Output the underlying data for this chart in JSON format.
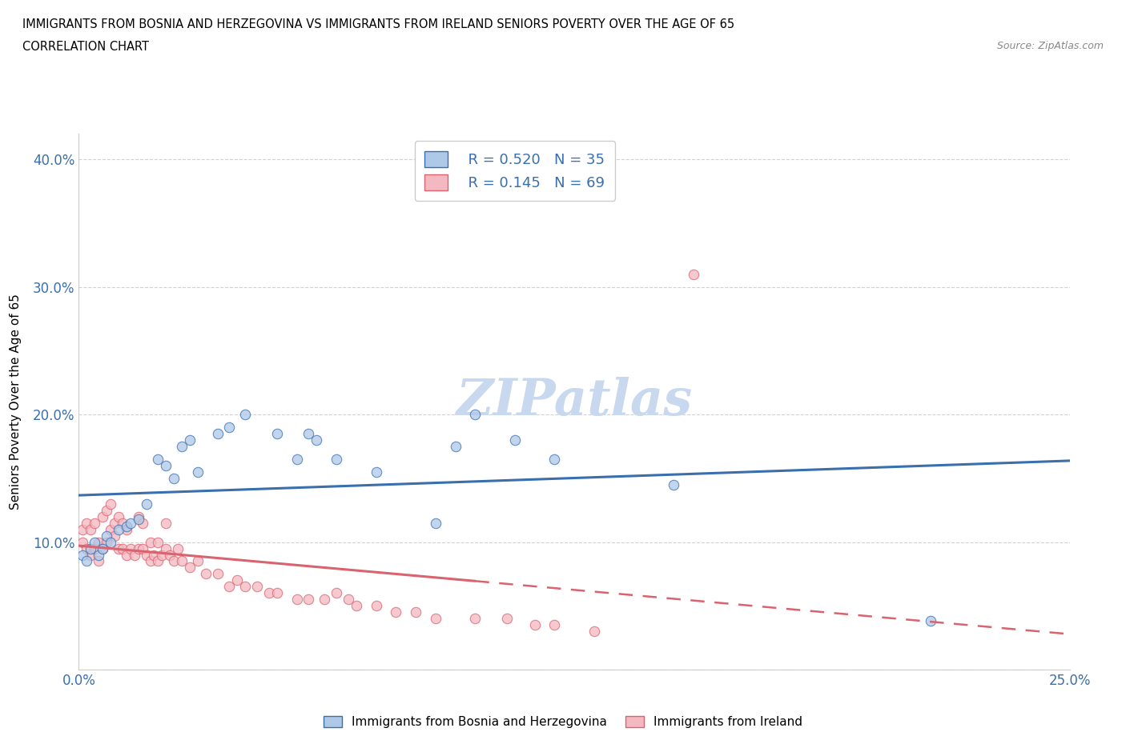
{
  "title_line1": "IMMIGRANTS FROM BOSNIA AND HERZEGOVINA VS IMMIGRANTS FROM IRELAND SENIORS POVERTY OVER THE AGE OF 65",
  "title_line2": "CORRELATION CHART",
  "source_text": "Source: ZipAtlas.com",
  "ylabel": "Seniors Poverty Over the Age of 65",
  "xlim": [
    0.0,
    0.25
  ],
  "ylim": [
    0.0,
    0.42
  ],
  "bosnia_color": "#aec8e8",
  "bosnia_edge_color": "#3a6fad",
  "ireland_color": "#f4b8c1",
  "ireland_edge_color": "#d9636e",
  "bosnia_R": 0.52,
  "bosnia_N": 35,
  "ireland_R": 0.145,
  "ireland_N": 69,
  "legend_bosnia_label": "Immigrants from Bosnia and Herzegovina",
  "legend_ireland_label": "Immigrants from Ireland",
  "bosnia_x": [
    0.001,
    0.002,
    0.003,
    0.004,
    0.005,
    0.006,
    0.007,
    0.008,
    0.01,
    0.012,
    0.013,
    0.015,
    0.017,
    0.02,
    0.022,
    0.024,
    0.026,
    0.028,
    0.03,
    0.035,
    0.038,
    0.042,
    0.05,
    0.055,
    0.058,
    0.06,
    0.065,
    0.075,
    0.09,
    0.095,
    0.1,
    0.11,
    0.12,
    0.15,
    0.215
  ],
  "bosnia_y": [
    0.09,
    0.085,
    0.095,
    0.1,
    0.09,
    0.095,
    0.105,
    0.1,
    0.11,
    0.112,
    0.115,
    0.118,
    0.13,
    0.165,
    0.16,
    0.15,
    0.175,
    0.18,
    0.155,
    0.185,
    0.19,
    0.2,
    0.185,
    0.165,
    0.185,
    0.18,
    0.165,
    0.155,
    0.115,
    0.175,
    0.2,
    0.18,
    0.165,
    0.145,
    0.038
  ],
  "ireland_x": [
    0.001,
    0.001,
    0.002,
    0.002,
    0.003,
    0.003,
    0.004,
    0.004,
    0.005,
    0.005,
    0.006,
    0.006,
    0.007,
    0.007,
    0.008,
    0.008,
    0.009,
    0.009,
    0.01,
    0.01,
    0.011,
    0.011,
    0.012,
    0.012,
    0.013,
    0.014,
    0.015,
    0.015,
    0.016,
    0.016,
    0.017,
    0.018,
    0.018,
    0.019,
    0.02,
    0.02,
    0.021,
    0.022,
    0.022,
    0.023,
    0.024,
    0.025,
    0.026,
    0.028,
    0.03,
    0.032,
    0.035,
    0.038,
    0.04,
    0.042,
    0.045,
    0.048,
    0.05,
    0.055,
    0.058,
    0.062,
    0.065,
    0.068,
    0.07,
    0.075,
    0.08,
    0.085,
    0.09,
    0.1,
    0.108,
    0.115,
    0.12,
    0.13,
    0.155
  ],
  "ireland_y": [
    0.1,
    0.11,
    0.095,
    0.115,
    0.09,
    0.11,
    0.095,
    0.115,
    0.085,
    0.1,
    0.095,
    0.12,
    0.1,
    0.125,
    0.11,
    0.13,
    0.105,
    0.115,
    0.095,
    0.12,
    0.095,
    0.115,
    0.09,
    0.11,
    0.095,
    0.09,
    0.095,
    0.12,
    0.095,
    0.115,
    0.09,
    0.085,
    0.1,
    0.09,
    0.085,
    0.1,
    0.09,
    0.095,
    0.115,
    0.09,
    0.085,
    0.095,
    0.085,
    0.08,
    0.085,
    0.075,
    0.075,
    0.065,
    0.07,
    0.065,
    0.065,
    0.06,
    0.06,
    0.055,
    0.055,
    0.055,
    0.06,
    0.055,
    0.05,
    0.05,
    0.045,
    0.045,
    0.04,
    0.04,
    0.04,
    0.035,
    0.035,
    0.03,
    0.31
  ],
  "tick_color": "#3a6fad",
  "grid_color": "#cccccc",
  "watermark_color": "#c8d8ee"
}
